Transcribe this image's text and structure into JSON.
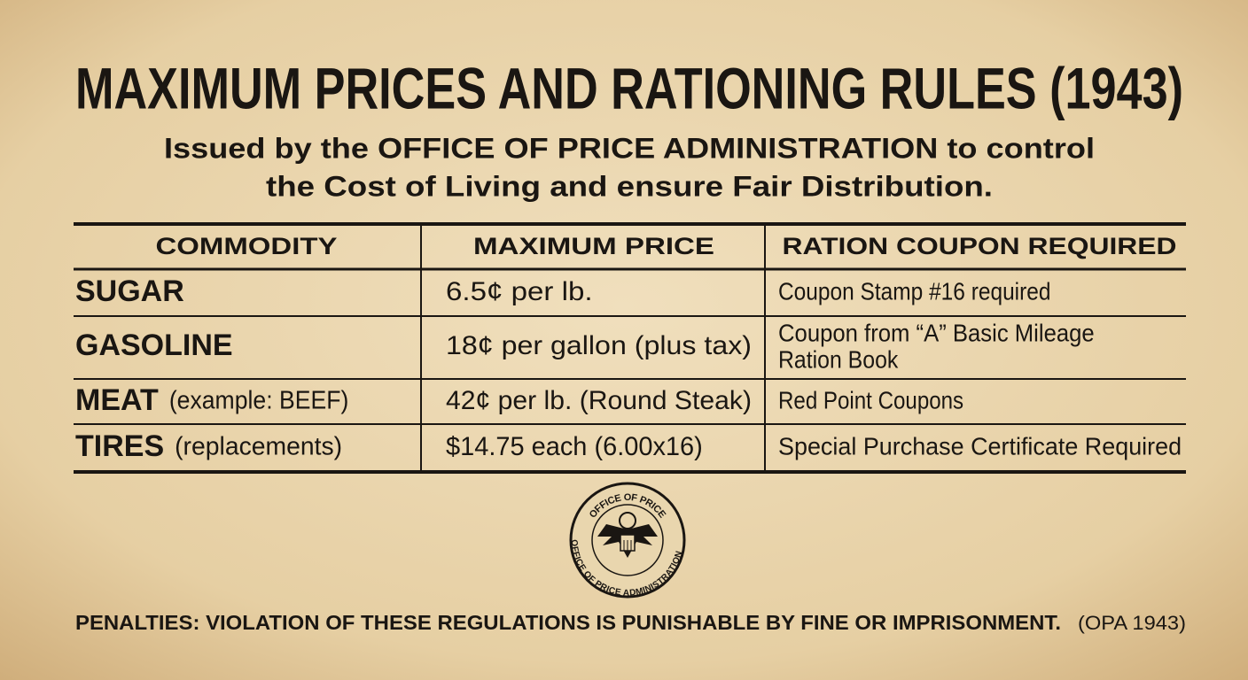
{
  "header": {
    "title": "MAXIMUM PRICES AND RATIONING RULES (1943)",
    "subtitle": [
      "Issued by the OFFICE OF PRICE ADMINISTRATION to control",
      "the Cost of Living and ensure Fair Distribution."
    ]
  },
  "table": {
    "headers": [
      "COMMODITY",
      "MAXIMUM PRICE",
      "RATION COUPON REQUIRED"
    ],
    "rows": [
      [
        {
          "name": "SUGAR"
        },
        "6.5¢ per lb.",
        [
          "Coupon Stamp #16 required"
        ]
      ],
      [
        {
          "name": "GASOLINE"
        },
        "18¢ per gallon (plus tax)",
        [
          "Coupon from “A” Basic Mileage",
          "Ration Book"
        ]
      ],
      [
        {
          "name": "MEAT",
          "note": "(example: BEEF)"
        },
        "42¢ per lb. (Round Steak)",
        [
          "Red Point Coupons"
        ]
      ],
      [
        {
          "name": "TIRES",
          "note": "(replacements)"
        },
        "$14.75 each (6.00x16)",
        [
          "Special Purchase Certificate Required"
        ]
      ]
    ]
  },
  "seal": {
    "top_text": "OFFICE OF PRICE",
    "ring_text": "OFFICE OF PRICE ADMINISTRATION"
  },
  "footer": {
    "penalty": "PENALTIES: VIOLATION OF THESE REGULATIONS IS PUNISHABLE BY FINE OR IMPRISONMENT.",
    "source": "(OPA 1943)"
  }
}
